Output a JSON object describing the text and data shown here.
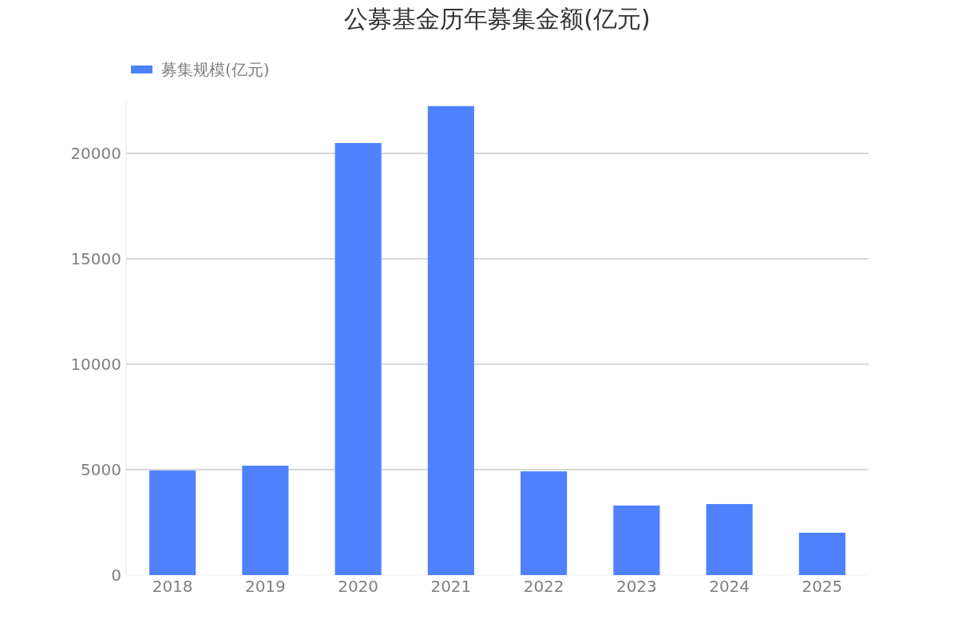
{
  "chart_data": {
    "type": "bar",
    "title": "公募基金历年募集金额(亿元)",
    "categories": [
      "2018",
      "2019",
      "2020",
      "2021",
      "2022",
      "2023",
      "2024",
      "2025"
    ],
    "series": [
      {
        "name": "募集规模(亿元)",
        "color": "#4f81ff",
        "values": [
          4960,
          5190,
          20490,
          22240,
          4920,
          3300,
          3370,
          2010
        ]
      }
    ],
    "ylim": [
      0,
      22500
    ],
    "yticks": [
      0,
      5000,
      10000,
      15000,
      20000
    ],
    "grid": "y",
    "legend": "top left"
  }
}
